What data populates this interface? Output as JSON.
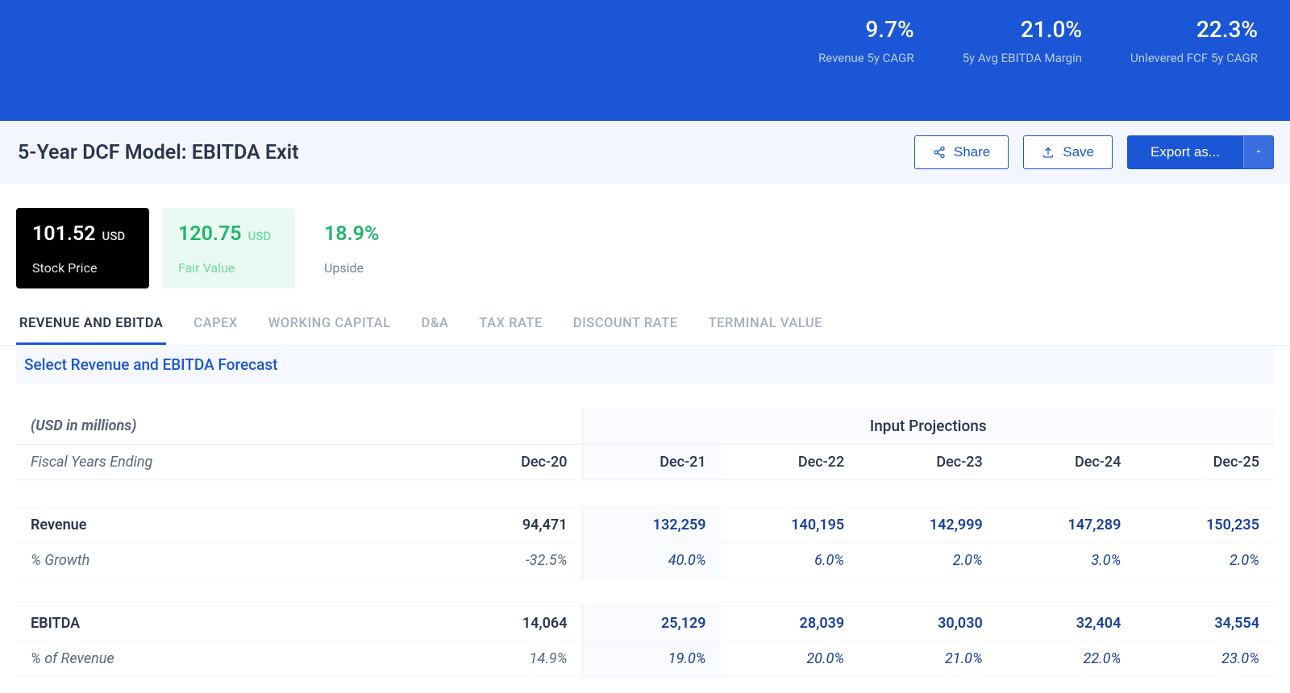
{
  "colors": {
    "hero_bg": "#1a56d6",
    "panel_bg": "#f3f6ff",
    "accent_blue": "#1a56d6",
    "proj_text": "#18419e",
    "muted_text": "#7a8398",
    "green_bg": "#eafaf2",
    "green_text": "#1fb66a",
    "border": "#eef0f6"
  },
  "hero": {
    "metrics": [
      {
        "value": "9.7%",
        "label": "Revenue 5y CAGR"
      },
      {
        "value": "21.0%",
        "label": "5y Avg EBITDA Margin"
      },
      {
        "value": "22.3%",
        "label": "Unlevered FCF 5y CAGR"
      }
    ]
  },
  "page": {
    "title": "5-Year DCF Model: EBITDA Exit",
    "share_label": "Share",
    "save_label": "Save",
    "export_label": "Export as..."
  },
  "cards": {
    "stock": {
      "value": "101.52",
      "unit": "USD",
      "label": "Stock Price"
    },
    "fair": {
      "value": "120.75",
      "unit": "USD",
      "label": "Fair Value"
    },
    "upside": {
      "value": "18.9%",
      "label": "Upside"
    }
  },
  "tabs": [
    "REVENUE AND EBITDA",
    "CAPEX",
    "WORKING CAPITAL",
    "D&A",
    "TAX RATE",
    "DISCOUNT RATE",
    "TERMINAL VALUE"
  ],
  "active_tab_index": 0,
  "select_link": "Select Revenue and EBITDA Forecast",
  "table": {
    "unit_note": "(USD in millions)",
    "proj_header": "Input Projections",
    "fye_label": "Fiscal Years Ending",
    "years": [
      "Dec-20",
      "Dec-21",
      "Dec-22",
      "Dec-23",
      "Dec-24",
      "Dec-25"
    ],
    "projection_start_index": 1,
    "rows": [
      {
        "label": "Revenue",
        "values": [
          "94,471",
          "132,259",
          "140,195",
          "142,999",
          "147,289",
          "150,235"
        ]
      },
      {
        "label": "% Growth",
        "sub": true,
        "values": [
          "-32.5%",
          "40.0%",
          "6.0%",
          "2.0%",
          "3.0%",
          "2.0%"
        ]
      },
      {
        "spacer": true
      },
      {
        "label": "EBITDA",
        "values": [
          "14,064",
          "25,129",
          "28,039",
          "30,030",
          "32,404",
          "34,554"
        ]
      },
      {
        "label": "% of Revenue",
        "sub": true,
        "values": [
          "14.9%",
          "19.0%",
          "20.0%",
          "21.0%",
          "22.0%",
          "23.0%"
        ]
      }
    ]
  }
}
